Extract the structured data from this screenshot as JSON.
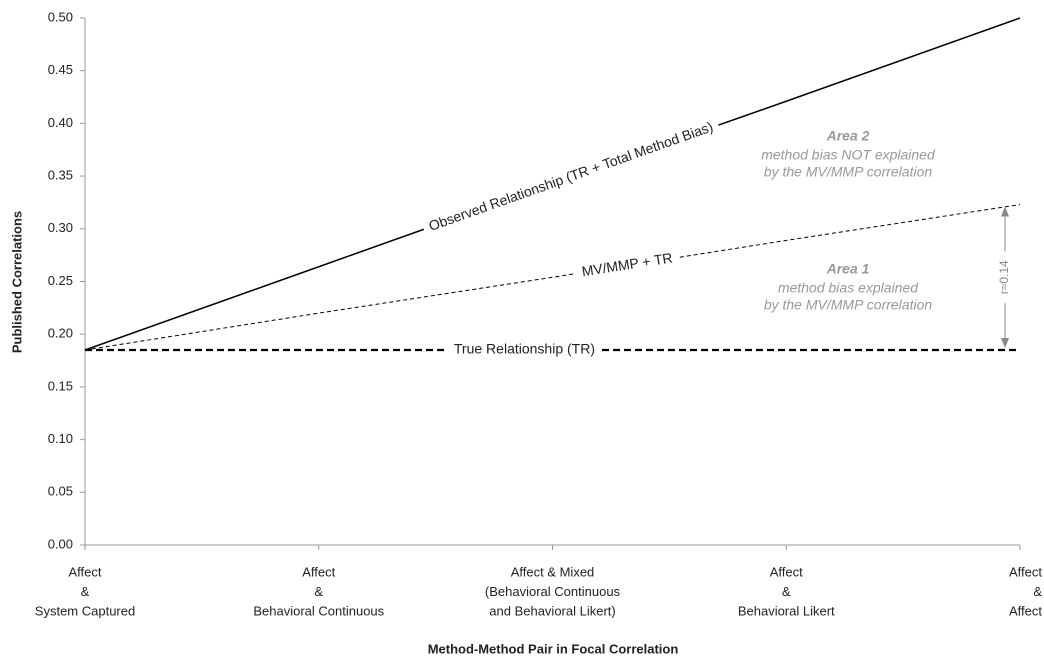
{
  "chart_data": {
    "type": "line",
    "y_label": "Published Correlations",
    "x_label": "Method-Method Pair in Focal Correlation",
    "categories": [
      [
        "Affect",
        "&",
        "System Captured"
      ],
      [
        "Affect",
        "&",
        "Behavioral Continuous"
      ],
      [
        "Affect & Mixed",
        "(Behavioral Continuous",
        "and Behavioral Likert)"
      ],
      [
        "Affect",
        "&",
        "Behavioral Likert"
      ],
      [
        "Affect",
        "&",
        "Affect"
      ]
    ],
    "series": [
      {
        "name": "Observed Relationship (TR + Total Method Bias)",
        "color": "#000000",
        "style": "solid",
        "values": [
          0.185,
          0.264,
          0.343,
          0.421,
          0.5
        ]
      },
      {
        "name": "MV/MMP + TR",
        "color": "#000000",
        "style": "dashed",
        "values": [
          0.185,
          0.22,
          0.254,
          0.289,
          0.323
        ]
      },
      {
        "name": "True Relationship (TR)",
        "color": "#000000",
        "style": "thick-dashed",
        "values": [
          0.185,
          0.185,
          0.185,
          0.185,
          0.185
        ]
      }
    ],
    "annotations": [
      {
        "title": "Area 2",
        "lines": [
          "method bias NOT explained",
          "by the MV/MMP correlation"
        ]
      },
      {
        "title": "Area 1",
        "lines": [
          "method bias explained",
          "by the MV/MMP correlation"
        ]
      }
    ],
    "difference_label": "r≈0.14",
    "ylim": [
      0,
      0.5
    ],
    "yticks": [
      {
        "value": 0,
        "label": "0.00"
      },
      0.05,
      {
        "value": 0.1,
        "label": "0.10"
      },
      0.15,
      {
        "value": 0.2,
        "label": "0.20"
      },
      0.25,
      {
        "value": 0.3,
        "label": "0.30"
      },
      0.35,
      {
        "value": 0.4,
        "label": "0.40"
      },
      0.45,
      {
        "value": 0.5,
        "label": "0.50"
      }
    ],
    "grid": false
  }
}
